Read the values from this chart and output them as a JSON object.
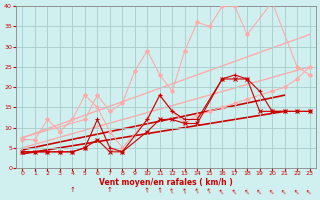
{
  "xlabel": "Vent moyen/en rafales ( km/h )",
  "background_color": "#d0f0f0",
  "grid_color": "#a8cccc",
  "xlim": [
    -0.5,
    23.5
  ],
  "ylim": [
    0,
    40
  ],
  "xticks": [
    0,
    1,
    2,
    3,
    4,
    5,
    6,
    7,
    8,
    9,
    10,
    11,
    12,
    13,
    14,
    15,
    16,
    17,
    18,
    19,
    20,
    21,
    22,
    23
  ],
  "yticks": [
    0,
    5,
    10,
    15,
    20,
    25,
    30,
    35,
    40
  ],
  "series": [
    {
      "x": [
        0,
        23
      ],
      "y": [
        7.5,
        33
      ],
      "color": "#ffaaaa",
      "lw": 1.0,
      "marker": null,
      "ms": 0,
      "zorder": 1
    },
    {
      "x": [
        0,
        23
      ],
      "y": [
        5,
        25
      ],
      "color": "#ffaaaa",
      "lw": 1.0,
      "marker": null,
      "ms": 0,
      "zorder": 1
    },
    {
      "x": [
        0,
        21
      ],
      "y": [
        4.5,
        18
      ],
      "color": "#cc0000",
      "lw": 1.2,
      "marker": null,
      "ms": 0,
      "zorder": 1
    },
    {
      "x": [
        0,
        21
      ],
      "y": [
        3.5,
        14
      ],
      "color": "#cc0000",
      "lw": 1.2,
      "marker": null,
      "ms": 0,
      "zorder": 1
    },
    {
      "x": [
        0,
        5,
        6,
        7,
        8,
        9,
        10,
        11,
        12,
        13,
        14,
        15,
        16,
        17,
        18,
        20,
        22,
        23
      ],
      "y": [
        7.5,
        12,
        18,
        14,
        16,
        24,
        29,
        23,
        19,
        29,
        36,
        35,
        40,
        40,
        33,
        41,
        25,
        23
      ],
      "color": "#ffaaaa",
      "lw": 0.8,
      "marker": "D",
      "ms": 2.0,
      "zorder": 3
    },
    {
      "x": [
        0,
        1,
        2,
        3,
        4,
        5,
        6,
        7,
        8,
        10,
        11,
        12,
        13,
        14,
        15,
        16,
        17,
        18,
        20,
        21,
        22,
        23
      ],
      "y": [
        7,
        7,
        12,
        9,
        12,
        18,
        15,
        9,
        5,
        12,
        18,
        14,
        11,
        13,
        14,
        15,
        16,
        17,
        19,
        20,
        22,
        25
      ],
      "color": "#ffaaaa",
      "lw": 0.8,
      "marker": "D",
      "ms": 2.0,
      "zorder": 3
    },
    {
      "x": [
        0,
        1,
        2,
        3,
        4,
        5,
        6,
        7,
        8,
        10,
        11,
        12,
        13,
        14,
        16,
        17,
        18,
        19,
        20,
        21,
        22,
        23
      ],
      "y": [
        4,
        4,
        4,
        4,
        4,
        5,
        12,
        5,
        4,
        12,
        18,
        14,
        12,
        12,
        22,
        23,
        22,
        19,
        14,
        14,
        14,
        14
      ],
      "color": "#cc0000",
      "lw": 0.8,
      "marker": "+",
      "ms": 3.5,
      "zorder": 3
    },
    {
      "x": [
        0,
        1,
        2,
        3,
        4,
        5,
        6,
        7,
        8,
        10,
        11,
        12,
        13,
        14,
        16,
        17,
        18,
        19,
        20,
        21,
        22,
        23
      ],
      "y": [
        4,
        4,
        4,
        4,
        4,
        5,
        7,
        4,
        4,
        9,
        12,
        12,
        11,
        11,
        22,
        22,
        22,
        14,
        14,
        14,
        14,
        14
      ],
      "color": "#cc0000",
      "lw": 0.8,
      "marker": "x",
      "ms": 3.0,
      "zorder": 3
    }
  ],
  "wind_arrows_x": [
    4,
    7,
    10,
    11,
    12,
    13,
    14,
    15,
    16,
    17,
    18,
    19,
    20,
    21,
    22,
    23
  ],
  "wind_arrows_rot": [
    0,
    0,
    10,
    10,
    15,
    15,
    25,
    25,
    35,
    35,
    40,
    40,
    45,
    45,
    45,
    45
  ],
  "xlabel_color": "#cc0000",
  "tick_color": "#cc0000",
  "axis_color": "#888888"
}
